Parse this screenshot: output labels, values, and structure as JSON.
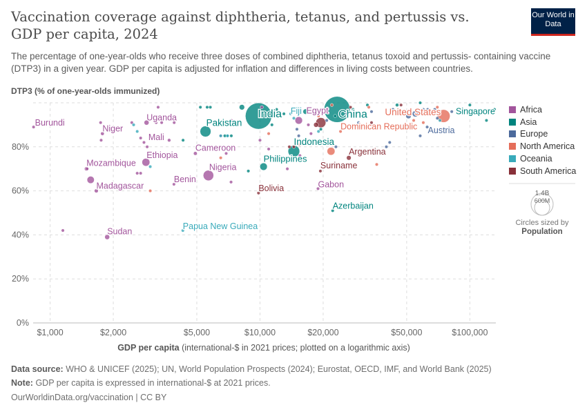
{
  "header": {
    "title": "Vaccination coverage against diphtheria, tetanus, and pertussis vs. GDP per capita, 2024",
    "subtitle": "The percentage of one-year-olds who receive three doses of combined diphtheria, tetanus toxoid and pertussis- containing vaccine (DTP3) in a given year. GDP per capita is adjusted for inflation and differences in living costs between countries.",
    "logo": "Our World in Data"
  },
  "legend": {
    "items": [
      {
        "name": "Africa",
        "color": "#a2559c"
      },
      {
        "name": "Asia",
        "color": "#00847e"
      },
      {
        "name": "Europe",
        "color": "#4c6a9c"
      },
      {
        "name": "North America",
        "color": "#e56e5a"
      },
      {
        "name": "Oceania",
        "color": "#38aaba"
      },
      {
        "name": "South America",
        "color": "#883039"
      }
    ],
    "size_big": "1.4B",
    "size_small": "600M",
    "size_note": "Circles sized by",
    "size_var": "Population"
  },
  "footer": {
    "source_label": "Data source:",
    "source": "WHO & UNICEF (2025); UN, World Population Prospects (2024); Eurostat, OECD, IMF, and World Bank (2025)",
    "note_label": "Note:",
    "note": "GDP per capita is expressed in international-$ at 2021 prices.",
    "url": "OurWorldinData.org/vaccination | CC BY"
  },
  "chart_data": {
    "type": "scatter",
    "ylabel": "DTP3 (% of one-year-olds immunized)",
    "xlabel_bold": "GDP per capita",
    "xlabel": "(international-$ in 2021 prices; plotted on a logarithmic axis)",
    "x_scale": "log",
    "xlim": [
      830,
      133000
    ],
    "ylim": [
      0,
      100
    ],
    "x_ticks": [
      {
        "v": 1000,
        "label": "$1,000"
      },
      {
        "v": 2000,
        "label": "$2,000"
      },
      {
        "v": 5000,
        "label": "$5,000"
      },
      {
        "v": 10000,
        "label": "$10,000"
      },
      {
        "v": 20000,
        "label": "$20,000"
      },
      {
        "v": 50000,
        "label": "$50,000"
      },
      {
        "v": 100000,
        "label": "$100,000"
      }
    ],
    "y_ticks": [
      {
        "v": 0,
        "label": "0%"
      },
      {
        "v": 20,
        "label": "20%"
      },
      {
        "v": 40,
        "label": "40%"
      },
      {
        "v": 60,
        "label": "60%"
      },
      {
        "v": 80,
        "label": "80%"
      },
      {
        "v": 100,
        "label": ""
      }
    ],
    "grid": true,
    "legend_position": "right",
    "labeled_points": [
      {
        "label": "Burundi",
        "gdp": 834,
        "dtp3": 89,
        "pop_m": 14,
        "continent": "Africa"
      },
      {
        "label": "Niger",
        "gdp": 1775,
        "dtp3": 86,
        "pop_m": 27,
        "continent": "Africa"
      },
      {
        "label": "Uganda",
        "gdp": 2880,
        "dtp3": 91,
        "pop_m": 50,
        "continent": "Africa"
      },
      {
        "label": "Mali",
        "gdp": 3690,
        "dtp3": 83,
        "pop_m": 24,
        "continent": "Africa"
      },
      {
        "label": "Ethiopia",
        "gdp": 2860,
        "dtp3": 73,
        "pop_m": 130,
        "continent": "Africa"
      },
      {
        "label": "Mozambique",
        "gdp": 1490,
        "dtp3": 70,
        "pop_m": 34,
        "continent": "Africa"
      },
      {
        "label": "Madagascar",
        "gdp": 1660,
        "dtp3": 60,
        "pop_m": 32,
        "continent": "Africa"
      },
      {
        "label": "Sudan",
        "gdp": 1870,
        "dtp3": 39,
        "pop_m": 50,
        "continent": "Africa"
      },
      {
        "label": "Benin",
        "gdp": 3890,
        "dtp3": 63,
        "pop_m": 14,
        "continent": "Africa"
      },
      {
        "label": "Nigeria",
        "gdp": 5680,
        "dtp3": 67,
        "pop_m": 230,
        "continent": "Africa"
      },
      {
        "label": "Cameroon",
        "gdp": 4920,
        "dtp3": 77,
        "pop_m": 29,
        "continent": "Africa"
      },
      {
        "label": "Gabon",
        "gdp": 18900,
        "dtp3": 61,
        "pop_m": 2.5,
        "continent": "Africa"
      },
      {
        "label": "Egypt",
        "gdp": 15300,
        "dtp3": 92,
        "pop_m": 116,
        "continent": "Africa"
      },
      {
        "label": "Pakistan",
        "gdp": 5500,
        "dtp3": 87,
        "pop_m": 250,
        "continent": "Asia"
      },
      {
        "label": "India",
        "gdp": 9840,
        "dtp3": 94,
        "pop_m": 1450,
        "continent": "Asia"
      },
      {
        "label": "Philippines",
        "gdp": 10400,
        "dtp3": 71,
        "pop_m": 115,
        "continent": "Asia"
      },
      {
        "label": "Indonesia",
        "gdp": 14500,
        "dtp3": 78,
        "pop_m": 283,
        "continent": "Asia"
      },
      {
        "label": "China",
        "gdp": 23300,
        "dtp3": 97,
        "pop_m": 1420,
        "continent": "Asia"
      },
      {
        "label": "Azerbaijan",
        "gdp": 22200,
        "dtp3": 51,
        "pop_m": 10,
        "continent": "Asia"
      },
      {
        "label": "Singapore",
        "gdp": 131000,
        "dtp3": 97,
        "pop_m": 6,
        "continent": "Asia"
      },
      {
        "label": "Austria",
        "gdp": 62600,
        "dtp3": 89,
        "pop_m": 9,
        "continent": "Europe"
      },
      {
        "label": "United States",
        "gdp": 75000,
        "dtp3": 94,
        "pop_m": 345,
        "continent": "North America"
      },
      {
        "label": "Dominican Republic",
        "gdp": 24200,
        "dtp3": 87,
        "pop_m": 11,
        "continent": "North America"
      },
      {
        "label": "Papua New Guinea",
        "gdp": 4290,
        "dtp3": 42,
        "pop_m": 10,
        "continent": "Oceania"
      },
      {
        "label": "Fiji",
        "gdp": 14000,
        "dtp3": 95,
        "pop_m": 1,
        "continent": "Oceania"
      },
      {
        "label": "Bolivia",
        "gdp": 9840,
        "dtp3": 59,
        "pop_m": 12,
        "continent": "South America"
      },
      {
        "label": "Argentina",
        "gdp": 26500,
        "dtp3": 75,
        "pop_m": 45,
        "continent": "South America"
      },
      {
        "label": "Suriname",
        "gdp": 19400,
        "dtp3": 69,
        "pop_m": 0.6,
        "continent": "South America"
      }
    ],
    "other_points": [
      [
        1150,
        42,
        5,
        "Africa"
      ],
      [
        1500,
        70,
        5,
        "Africa"
      ],
      [
        1560,
        65,
        110,
        "Africa"
      ],
      [
        1740,
        91,
        5,
        "Africa"
      ],
      [
        1750,
        83,
        5,
        "Africa"
      ],
      [
        2450,
        91,
        5,
        "Africa"
      ],
      [
        2700,
        84,
        5,
        "Africa"
      ],
      [
        2800,
        82,
        8,
        "Africa"
      ],
      [
        2900,
        80,
        5,
        "Africa"
      ],
      [
        3200,
        91,
        5,
        "Africa"
      ],
      [
        3400,
        91,
        5,
        "Africa"
      ],
      [
        3900,
        91,
        5,
        "Africa"
      ],
      [
        3270,
        98,
        5,
        "Africa"
      ],
      [
        2600,
        68,
        5,
        "Africa"
      ],
      [
        2700,
        68,
        5,
        "Africa"
      ],
      [
        7300,
        92,
        12,
        "Africa"
      ],
      [
        6500,
        85,
        5,
        "Africa"
      ],
      [
        6900,
        77,
        5,
        "Africa"
      ],
      [
        7280,
        64,
        12,
        "Africa"
      ],
      [
        10000,
        83,
        5,
        "Africa"
      ],
      [
        10200,
        98,
        5,
        "Africa"
      ],
      [
        11000,
        79,
        5,
        "Africa"
      ],
      [
        13500,
        70,
        5,
        "Africa"
      ],
      [
        15500,
        76,
        5,
        "Africa"
      ],
      [
        17000,
        90,
        5,
        "Africa"
      ],
      [
        17500,
        86,
        5,
        "Africa"
      ],
      [
        5800,
        98,
        5,
        "Asia"
      ],
      [
        4300,
        83,
        3,
        "Asia"
      ],
      [
        5200,
        98,
        3,
        "Asia"
      ],
      [
        5600,
        98,
        5,
        "Asia"
      ],
      [
        8200,
        98,
        60,
        "Asia"
      ],
      [
        7000,
        85,
        3,
        "Asia"
      ],
      [
        7300,
        85,
        3,
        "Asia"
      ],
      [
        6800,
        85,
        3,
        "Asia"
      ],
      [
        11400,
        90,
        10,
        "Asia"
      ],
      [
        12000,
        97,
        5,
        "Asia"
      ],
      [
        13000,
        95,
        5,
        "Asia"
      ],
      [
        16500,
        96,
        60,
        "Asia"
      ],
      [
        22800,
        94,
        10,
        "Asia"
      ],
      [
        27800,
        97,
        5,
        "Asia"
      ],
      [
        32500,
        99,
        15,
        "Asia"
      ],
      [
        45000,
        99,
        25,
        "Asia"
      ],
      [
        19500,
        88,
        3,
        "Asia"
      ],
      [
        58000,
        100,
        3,
        "Asia"
      ],
      [
        100000,
        99,
        3,
        "Asia"
      ],
      [
        120000,
        92,
        3,
        "Asia"
      ],
      [
        8800,
        69,
        3,
        "Asia"
      ],
      [
        15000,
        88,
        3,
        "Europe"
      ],
      [
        15300,
        85,
        3,
        "Europe"
      ],
      [
        20800,
        92,
        3,
        "Europe"
      ],
      [
        23000,
        80,
        3,
        "Europe"
      ],
      [
        26000,
        95,
        3,
        "Europe"
      ],
      [
        29500,
        91,
        3,
        "Europe"
      ],
      [
        34000,
        96,
        8,
        "Europe"
      ],
      [
        40000,
        80,
        3,
        "Europe"
      ],
      [
        41500,
        82,
        3,
        "Europe"
      ],
      [
        43000,
        97,
        3,
        "Europe"
      ],
      [
        48000,
        96,
        10,
        "Europe"
      ],
      [
        51000,
        94,
        60,
        "Europe"
      ],
      [
        55000,
        95,
        80,
        "Europe"
      ],
      [
        60000,
        97,
        3,
        "Europe"
      ],
      [
        63000,
        97,
        10,
        "Europe"
      ],
      [
        68000,
        97,
        3,
        "Europe"
      ],
      [
        70000,
        93,
        3,
        "Europe"
      ],
      [
        82000,
        96,
        3,
        "Europe"
      ],
      [
        58000,
        85,
        3,
        "Europe"
      ],
      [
        3000,
        60,
        3,
        "North America"
      ],
      [
        6500,
        75,
        3,
        "North America"
      ],
      [
        11000,
        86,
        3,
        "North America"
      ],
      [
        15500,
        81,
        3,
        "North America"
      ],
      [
        19000,
        94,
        3,
        "North America"
      ],
      [
        22000,
        99,
        3,
        "North America"
      ],
      [
        21800,
        78,
        130,
        "North America"
      ],
      [
        33000,
        98,
        3,
        "North America"
      ],
      [
        36000,
        72,
        3,
        "North America"
      ],
      [
        54000,
        92,
        3,
        "North America"
      ],
      [
        60000,
        91,
        12,
        "North America"
      ],
      [
        70000,
        98,
        3,
        "North America"
      ],
      [
        2600,
        87,
        3,
        "Oceania"
      ],
      [
        3000,
        71,
        3,
        "Oceania"
      ],
      [
        2500,
        90,
        3,
        "Oceania"
      ],
      [
        6500,
        85,
        3,
        "Oceania"
      ],
      [
        7000,
        85,
        3,
        "Oceania"
      ],
      [
        14500,
        93,
        3,
        "Oceania"
      ],
      [
        19000,
        87,
        3,
        "Oceania"
      ],
      [
        72000,
        92,
        10,
        "Oceania"
      ],
      [
        13800,
        80,
        3,
        "South America"
      ],
      [
        14500,
        80,
        3,
        "South America"
      ],
      [
        18500,
        90,
        50,
        "South America"
      ],
      [
        19500,
        91,
        212,
        "South America"
      ],
      [
        27000,
        98,
        3,
        "South America"
      ],
      [
        34000,
        91,
        3,
        "South America"
      ],
      [
        47000,
        99,
        3,
        "South America"
      ]
    ]
  }
}
